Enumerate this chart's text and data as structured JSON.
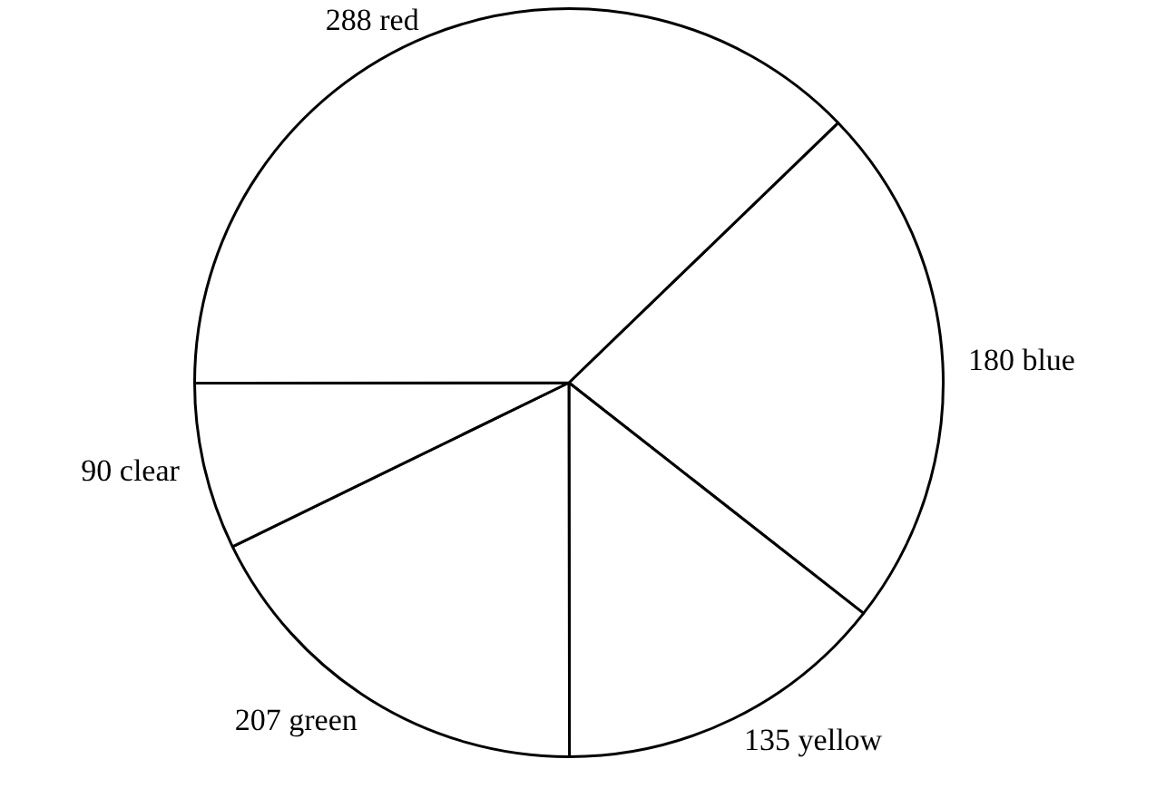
{
  "chart_data": {
    "type": "pie",
    "categories": [
      "180 blue",
      "135 yellow",
      "207 green",
      "90 clear",
      "288 red"
    ],
    "values": [
      22.8,
      14.4,
      17.8,
      7.2,
      37.8
    ],
    "colors": [
      "#ffffff",
      "#ffffff",
      "#ffffff",
      "#ffffff",
      "#ffffff"
    ],
    "legend": false
  }
}
